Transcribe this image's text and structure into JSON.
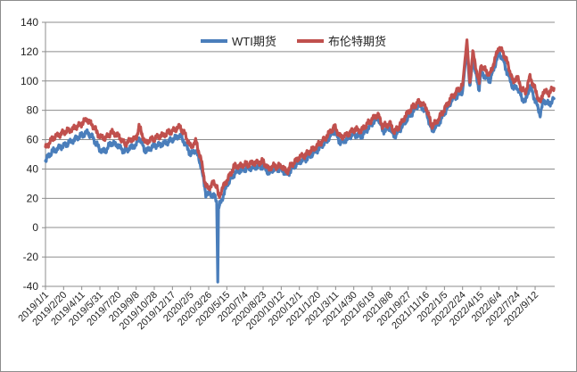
{
  "chart_data": {
    "type": "line",
    "title": "",
    "xlabel": "",
    "ylabel": "",
    "ylim": [
      -40,
      140
    ],
    "y_ticks": [
      "140",
      "120",
      "100",
      "80",
      "60",
      "40",
      "20",
      "0",
      "-20",
      "-40"
    ],
    "x_ticks": [
      "2019/1/1",
      "2019/2/20",
      "2019/4/11",
      "2019/5/31",
      "2019/7/20",
      "2019/9/8",
      "2019/10/28",
      "2019/12/17",
      "2020/2/5",
      "2020/3/26",
      "2020/5/15",
      "2020/7/4",
      "2020/8/23",
      "2020/10/12",
      "2020/12/1",
      "2021/1/20",
      "2021/3/11",
      "2021/4/30",
      "2021/6/19",
      "2021/8/8",
      "2021/9/27",
      "2021/11/16",
      "2022/1/5",
      "2022/2/24",
      "2022/4/15",
      "2022/6/4",
      "2022/7/24",
      "2022/9/12"
    ],
    "grid": "horizontal",
    "legend_position": "top-center",
    "series": [
      {
        "name": "WTI期货",
        "color": "#4a7ebb",
        "points": [
          [
            "2019-01-01",
            46
          ],
          [
            "2019-01-20",
            52
          ],
          [
            "2019-02-20",
            56
          ],
          [
            "2019-03-15",
            59
          ],
          [
            "2019-04-11",
            63
          ],
          [
            "2019-04-25",
            65
          ],
          [
            "2019-05-10",
            62
          ],
          [
            "2019-05-31",
            53
          ],
          [
            "2019-06-15",
            52
          ],
          [
            "2019-07-01",
            58
          ],
          [
            "2019-07-20",
            56
          ],
          [
            "2019-08-07",
            52
          ],
          [
            "2019-08-25",
            55
          ],
          [
            "2019-09-08",
            56
          ],
          [
            "2019-09-16",
            62
          ],
          [
            "2019-10-03",
            52
          ],
          [
            "2019-10-28",
            56
          ],
          [
            "2019-11-20",
            57
          ],
          [
            "2019-12-17",
            60
          ],
          [
            "2020-01-06",
            63
          ],
          [
            "2020-01-20",
            58
          ],
          [
            "2020-02-05",
            50
          ],
          [
            "2020-02-20",
            53
          ],
          [
            "2020-03-06",
            41
          ],
          [
            "2020-03-18",
            23
          ],
          [
            "2020-03-26",
            23
          ],
          [
            "2020-04-10",
            22
          ],
          [
            "2020-04-17",
            18
          ],
          [
            "2020-04-20",
            -37
          ],
          [
            "2020-04-22",
            13
          ],
          [
            "2020-05-01",
            19
          ],
          [
            "2020-05-15",
            29
          ],
          [
            "2020-06-05",
            37
          ],
          [
            "2020-06-20",
            39
          ],
          [
            "2020-07-04",
            40
          ],
          [
            "2020-07-25",
            41
          ],
          [
            "2020-08-23",
            42
          ],
          [
            "2020-09-08",
            37
          ],
          [
            "2020-09-20",
            40
          ],
          [
            "2020-10-12",
            40
          ],
          [
            "2020-10-28",
            36
          ],
          [
            "2020-11-10",
            40
          ],
          [
            "2020-12-01",
            45
          ],
          [
            "2020-12-20",
            47
          ],
          [
            "2021-01-20",
            53
          ],
          [
            "2021-02-10",
            58
          ],
          [
            "2021-03-08",
            66
          ],
          [
            "2021-03-23",
            58
          ],
          [
            "2021-04-10",
            60
          ],
          [
            "2021-04-30",
            64
          ],
          [
            "2021-05-20",
            62
          ],
          [
            "2021-06-19",
            71
          ],
          [
            "2021-07-06",
            75
          ],
          [
            "2021-07-19",
            66
          ],
          [
            "2021-08-08",
            68
          ],
          [
            "2021-08-20",
            62
          ],
          [
            "2021-09-10",
            69
          ],
          [
            "2021-09-27",
            75
          ],
          [
            "2021-10-26",
            84
          ],
          [
            "2021-11-16",
            79
          ],
          [
            "2021-12-01",
            66
          ],
          [
            "2021-12-20",
            71
          ],
          [
            "2022-01-05",
            78
          ],
          [
            "2022-01-25",
            87
          ],
          [
            "2022-02-24",
            93
          ],
          [
            "2022-03-08",
            123
          ],
          [
            "2022-03-16",
            95
          ],
          [
            "2022-03-24",
            114
          ],
          [
            "2022-04-11",
            94
          ],
          [
            "2022-04-15",
            106
          ],
          [
            "2022-05-10",
            100
          ],
          [
            "2022-06-04",
            119
          ],
          [
            "2022-06-15",
            115
          ],
          [
            "2022-06-28",
            105
          ],
          [
            "2022-07-14",
            95
          ],
          [
            "2022-07-24",
            96
          ],
          [
            "2022-08-05",
            89
          ],
          [
            "2022-08-16",
            86
          ],
          [
            "2022-08-29",
            97
          ],
          [
            "2022-09-12",
            87
          ],
          [
            "2022-09-26",
            77
          ],
          [
            "2022-10-05",
            87
          ],
          [
            "2022-10-20",
            84
          ],
          [
            "2022-11-03",
            88
          ]
        ]
      },
      {
        "name": "布伦特期货",
        "color": "#c0504d",
        "points": [
          [
            "2019-01-01",
            54
          ],
          [
            "2019-01-20",
            61
          ],
          [
            "2019-02-20",
            65
          ],
          [
            "2019-03-15",
            67
          ],
          [
            "2019-04-11",
            71
          ],
          [
            "2019-04-25",
            74
          ],
          [
            "2019-05-10",
            70
          ],
          [
            "2019-05-31",
            62
          ],
          [
            "2019-06-15",
            61
          ],
          [
            "2019-07-01",
            65
          ],
          [
            "2019-07-20",
            63
          ],
          [
            "2019-08-07",
            57
          ],
          [
            "2019-08-25",
            60
          ],
          [
            "2019-09-08",
            61
          ],
          [
            "2019-09-16",
            69
          ],
          [
            "2019-10-03",
            58
          ],
          [
            "2019-10-28",
            61
          ],
          [
            "2019-11-20",
            63
          ],
          [
            "2019-12-17",
            66
          ],
          [
            "2020-01-06",
            69
          ],
          [
            "2020-01-20",
            64
          ],
          [
            "2020-02-05",
            55
          ],
          [
            "2020-02-20",
            59
          ],
          [
            "2020-03-06",
            45
          ],
          [
            "2020-03-18",
            28
          ],
          [
            "2020-03-26",
            27
          ],
          [
            "2020-04-10",
            31
          ],
          [
            "2020-04-17",
            28
          ],
          [
            "2020-04-20",
            25
          ],
          [
            "2020-04-22",
            20
          ],
          [
            "2020-05-01",
            26
          ],
          [
            "2020-05-15",
            32
          ],
          [
            "2020-06-05",
            42
          ],
          [
            "2020-06-20",
            42
          ],
          [
            "2020-07-04",
            43
          ],
          [
            "2020-07-25",
            44
          ],
          [
            "2020-08-23",
            45
          ],
          [
            "2020-09-08",
            40
          ],
          [
            "2020-09-20",
            42
          ],
          [
            "2020-10-12",
            42
          ],
          [
            "2020-10-28",
            38
          ],
          [
            "2020-11-10",
            43
          ],
          [
            "2020-12-01",
            48
          ],
          [
            "2020-12-20",
            50
          ],
          [
            "2021-01-20",
            56
          ],
          [
            "2021-02-10",
            61
          ],
          [
            "2021-03-08",
            69
          ],
          [
            "2021-03-23",
            62
          ],
          [
            "2021-04-10",
            63
          ],
          [
            "2021-04-30",
            67
          ],
          [
            "2021-05-20",
            66
          ],
          [
            "2021-06-19",
            74
          ],
          [
            "2021-07-06",
            77
          ],
          [
            "2021-07-19",
            69
          ],
          [
            "2021-08-08",
            71
          ],
          [
            "2021-08-20",
            65
          ],
          [
            "2021-09-10",
            72
          ],
          [
            "2021-09-27",
            79
          ],
          [
            "2021-10-26",
            86
          ],
          [
            "2021-11-16",
            82
          ],
          [
            "2021-12-01",
            69
          ],
          [
            "2021-12-20",
            74
          ],
          [
            "2022-01-05",
            81
          ],
          [
            "2022-01-25",
            89
          ],
          [
            "2022-02-24",
            97
          ],
          [
            "2022-03-08",
            128
          ],
          [
            "2022-03-16",
            98
          ],
          [
            "2022-03-24",
            120
          ],
          [
            "2022-04-11",
            98
          ],
          [
            "2022-04-15",
            111
          ],
          [
            "2022-05-10",
            104
          ],
          [
            "2022-06-04",
            123
          ],
          [
            "2022-06-15",
            120
          ],
          [
            "2022-06-28",
            112
          ],
          [
            "2022-07-14",
            99
          ],
          [
            "2022-07-24",
            103
          ],
          [
            "2022-08-05",
            95
          ],
          [
            "2022-08-16",
            92
          ],
          [
            "2022-08-29",
            103
          ],
          [
            "2022-09-12",
            94
          ],
          [
            "2022-09-26",
            85
          ],
          [
            "2022-10-05",
            93
          ],
          [
            "2022-10-20",
            92
          ],
          [
            "2022-11-03",
            95
          ]
        ]
      }
    ]
  }
}
